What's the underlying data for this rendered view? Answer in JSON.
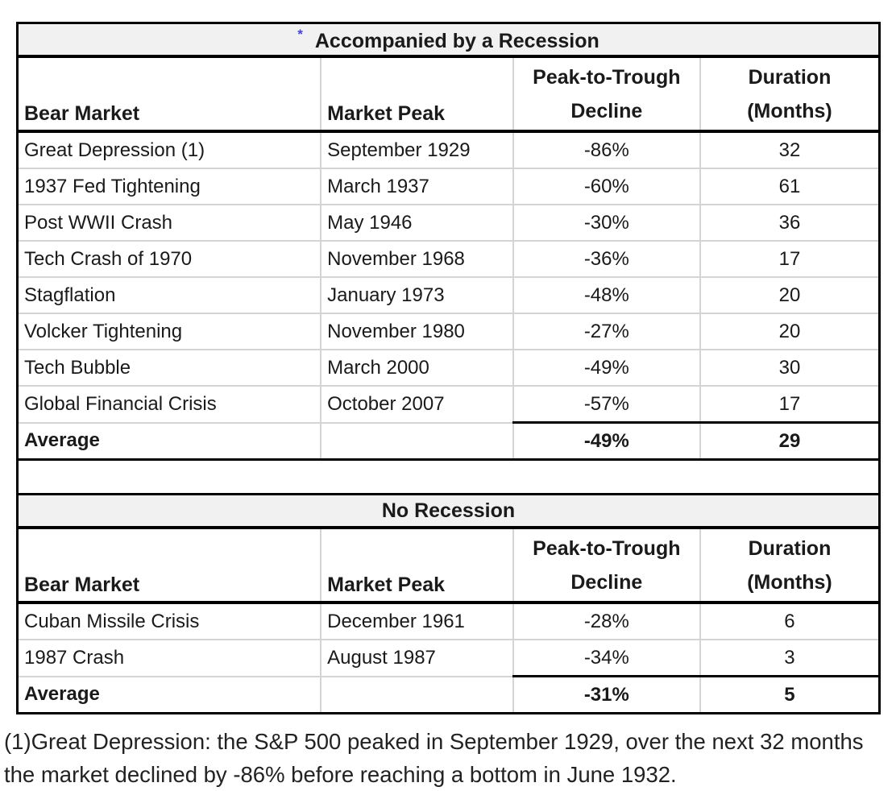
{
  "colors": {
    "title_background": "#f1f1f1",
    "gridline": "#d4d4d4",
    "border": "#000000",
    "marker_blue": "#4343e0"
  },
  "chart_data": [
    {
      "type": "table",
      "title": "Accompanied by a Recession",
      "title_marker": "*",
      "columns": [
        {
          "label": "Bear Market"
        },
        {
          "label": "Market Peak"
        },
        {
          "label": "Peak-to-Trough Decline",
          "line1": "Peak-to-Trough",
          "line2": "Decline"
        },
        {
          "label": "Duration (Months)",
          "line1": "Duration",
          "line2": "(Months)"
        }
      ],
      "rows": [
        {
          "bear_market": "Great Depression (1)",
          "market_peak": "September 1929",
          "decline": "-86%",
          "duration": "32"
        },
        {
          "bear_market": "1937 Fed Tightening",
          "market_peak": "March 1937",
          "decline": "-60%",
          "duration": "61"
        },
        {
          "bear_market": "Post WWII Crash",
          "market_peak": "May 1946",
          "decline": "-30%",
          "duration": "36"
        },
        {
          "bear_market": "Tech Crash of 1970",
          "market_peak": "November 1968",
          "decline": "-36%",
          "duration": "17"
        },
        {
          "bear_market": "Stagflation",
          "market_peak": "January 1973",
          "decline": "-48%",
          "duration": "20"
        },
        {
          "bear_market": "Volcker Tightening",
          "market_peak": "November 1980",
          "decline": "-27%",
          "duration": "20"
        },
        {
          "bear_market": "Tech Bubble",
          "market_peak": "March 2000",
          "decline": "-49%",
          "duration": "30"
        },
        {
          "bear_market": "Global Financial Crisis",
          "market_peak": "October 2007",
          "decline": "-57%",
          "duration": "17"
        }
      ],
      "average_row": {
        "label": "Average",
        "market_peak": "",
        "decline": "-49%",
        "duration": "29"
      }
    },
    {
      "type": "table",
      "title": "No Recession",
      "columns": [
        {
          "label": "Bear Market"
        },
        {
          "label": "Market Peak"
        },
        {
          "label": "Peak-to-Trough Decline",
          "line1": "Peak-to-Trough",
          "line2": "Decline"
        },
        {
          "label": "Duration (Months)",
          "line1": "Duration",
          "line2": "(Months)"
        }
      ],
      "rows": [
        {
          "bear_market": "Cuban Missile Crisis",
          "market_peak": "December 1961",
          "decline": "-28%",
          "duration": "6"
        },
        {
          "bear_market": "1987 Crash",
          "market_peak": "August 1987",
          "decline": "-34%",
          "duration": "3"
        }
      ],
      "average_row": {
        "label": "Average",
        "market_peak": "",
        "decline": "-31%",
        "duration": "5"
      }
    }
  ],
  "footnote": "(1)Great Depression: the S&P 500 peaked in September 1929, over the next 32 months the market declined by -86% before reaching a bottom in June 1932."
}
